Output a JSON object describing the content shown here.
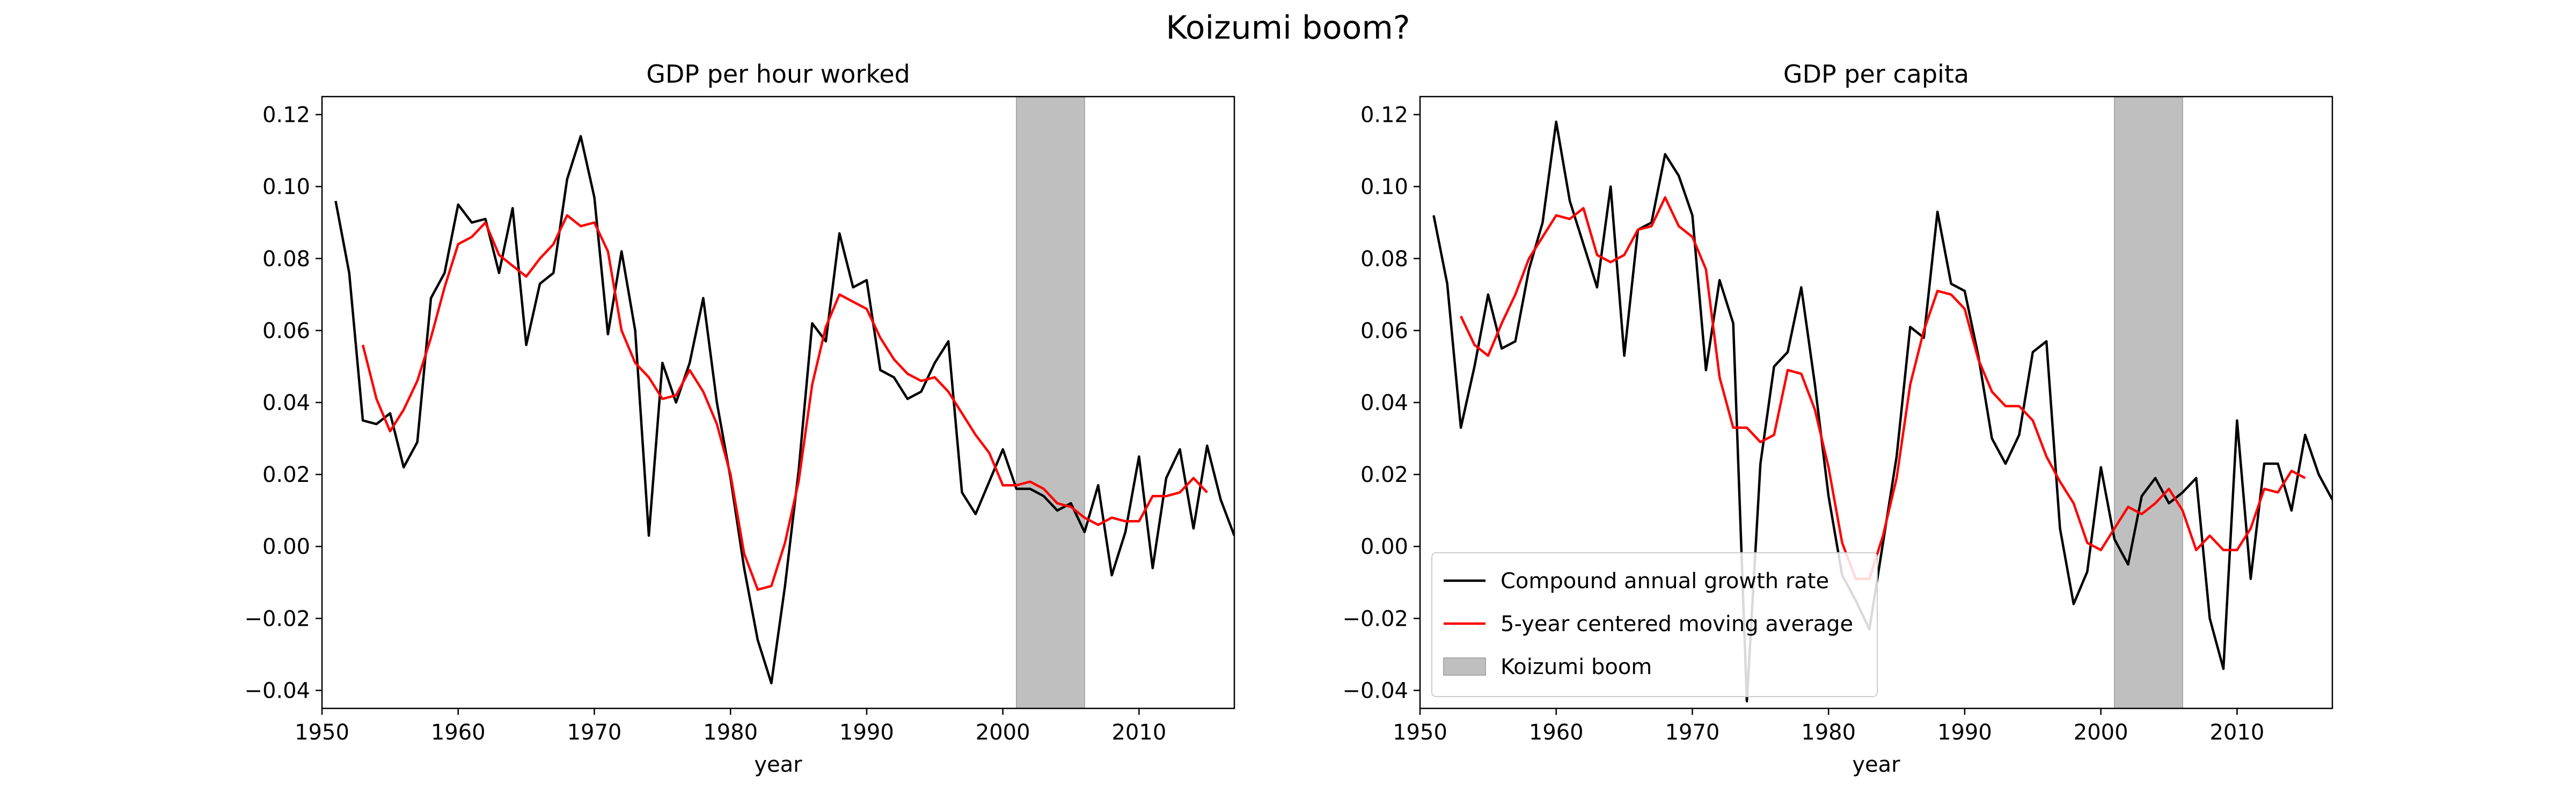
{
  "figure_title": "Koizumi boom?",
  "legend": {
    "placement": "lower left (right panel)",
    "items": [
      {
        "label": "Compound annual growth rate",
        "kind": "line",
        "color": "#000000"
      },
      {
        "label": "5-year centered moving average",
        "kind": "line",
        "color": "#ff0000"
      },
      {
        "label": "Koizumi boom",
        "kind": "patch",
        "color": "#bfbfbf"
      }
    ]
  },
  "chart_data": [
    {
      "type": "line",
      "title": "GDP per hour worked",
      "xlabel": "year",
      "ylabel": "",
      "xlim": [
        1950,
        2017
      ],
      "ylim": [
        -0.045,
        0.125
      ],
      "xticks": [
        1950,
        1960,
        1970,
        1980,
        1990,
        2000,
        2010
      ],
      "yticks": [
        -0.04,
        -0.02,
        0.0,
        0.02,
        0.04,
        0.06,
        0.08,
        0.1,
        0.12
      ],
      "ytick_labels": [
        "−0.04",
        "−0.02",
        "0.00",
        "0.02",
        "0.04",
        "0.06",
        "0.08",
        "0.10",
        "0.12"
      ],
      "grid": false,
      "shaded_span": {
        "label": "Koizumi boom",
        "x_start": 2001,
        "x_end": 2006,
        "color": "#bfbfbf"
      },
      "series": [
        {
          "name": "Compound annual growth rate",
          "color": "#000000",
          "x": [
            1951,
            1952,
            1953,
            1954,
            1955,
            1956,
            1957,
            1958,
            1959,
            1960,
            1961,
            1962,
            1963,
            1964,
            1965,
            1966,
            1967,
            1968,
            1969,
            1970,
            1971,
            1972,
            1973,
            1974,
            1975,
            1976,
            1977,
            1978,
            1979,
            1980,
            1981,
            1982,
            1983,
            1984,
            1985,
            1986,
            1987,
            1988,
            1989,
            1990,
            1991,
            1992,
            1993,
            1994,
            1995,
            1996,
            1997,
            1998,
            1999,
            2000,
            2001,
            2002,
            2003,
            2004,
            2005,
            2006,
            2007,
            2008,
            2009,
            2010,
            2011,
            2012,
            2013,
            2014,
            2015,
            2016,
            2017
          ],
          "y": [
            0.096,
            0.076,
            0.035,
            0.034,
            0.037,
            0.022,
            0.029,
            0.069,
            0.076,
            0.095,
            0.09,
            0.091,
            0.076,
            0.094,
            0.056,
            0.073,
            0.076,
            0.102,
            0.114,
            0.097,
            0.059,
            0.082,
            0.06,
            0.003,
            0.051,
            0.04,
            0.051,
            0.069,
            0.04,
            0.019,
            -0.006,
            -0.026,
            -0.038,
            -0.011,
            0.021,
            0.062,
            0.057,
            0.087,
            0.072,
            0.074,
            0.049,
            0.047,
            0.041,
            0.043,
            0.051,
            0.057,
            0.015,
            0.009,
            0.018,
            0.027,
            0.016,
            0.016,
            0.014,
            0.01,
            0.012,
            0.004,
            0.017,
            -0.008,
            0.004,
            0.025,
            -0.006,
            0.019,
            0.027,
            0.005,
            0.028,
            0.013,
            0.003
          ]
        },
        {
          "name": "5-year centered moving average",
          "color": "#ff0000",
          "x": [
            1953,
            1954,
            1955,
            1956,
            1957,
            1958,
            1959,
            1960,
            1961,
            1962,
            1963,
            1964,
            1965,
            1966,
            1967,
            1968,
            1969,
            1970,
            1971,
            1972,
            1973,
            1974,
            1975,
            1976,
            1977,
            1978,
            1979,
            1980,
            1981,
            1982,
            1983,
            1984,
            1985,
            1986,
            1987,
            1988,
            1989,
            1990,
            1991,
            1992,
            1993,
            1994,
            1995,
            1996,
            1997,
            1998,
            1999,
            2000,
            2001,
            2002,
            2003,
            2004,
            2005,
            2006,
            2007,
            2008,
            2009,
            2010,
            2011,
            2012,
            2013,
            2014,
            2015
          ],
          "y": [
            0.056,
            0.041,
            0.032,
            0.038,
            0.046,
            0.058,
            0.072,
            0.084,
            0.086,
            0.09,
            0.081,
            0.078,
            0.075,
            0.08,
            0.084,
            0.092,
            0.089,
            0.09,
            0.082,
            0.06,
            0.051,
            0.047,
            0.041,
            0.042,
            0.049,
            0.043,
            0.034,
            0.02,
            -0.002,
            -0.012,
            -0.011,
            0.001,
            0.018,
            0.045,
            0.061,
            0.07,
            0.068,
            0.066,
            0.058,
            0.052,
            0.048,
            0.046,
            0.047,
            0.043,
            0.037,
            0.031,
            0.026,
            0.017,
            0.017,
            0.018,
            0.016,
            0.012,
            0.011,
            0.008,
            0.006,
            0.008,
            0.007,
            0.007,
            0.014,
            0.014,
            0.015,
            0.019,
            0.015
          ]
        }
      ]
    },
    {
      "type": "line",
      "title": "GDP per capita",
      "xlabel": "year",
      "ylabel": "",
      "xlim": [
        1950,
        2017
      ],
      "ylim": [
        -0.045,
        0.125
      ],
      "xticks": [
        1950,
        1960,
        1970,
        1980,
        1990,
        2000,
        2010
      ],
      "yticks": [
        -0.04,
        -0.02,
        0.0,
        0.02,
        0.04,
        0.06,
        0.08,
        0.1,
        0.12
      ],
      "ytick_labels": [
        "−0.04",
        "−0.02",
        "0.00",
        "0.02",
        "0.04",
        "0.06",
        "0.08",
        "0.10",
        "0.12"
      ],
      "grid": false,
      "shaded_span": {
        "label": "Koizumi boom",
        "x_start": 2001,
        "x_end": 2006,
        "color": "#bfbfbf"
      },
      "series": [
        {
          "name": "Compound annual growth rate",
          "color": "#000000",
          "x": [
            1951,
            1952,
            1953,
            1954,
            1955,
            1956,
            1957,
            1958,
            1959,
            1960,
            1961,
            1962,
            1963,
            1964,
            1965,
            1966,
            1967,
            1968,
            1969,
            1970,
            1971,
            1972,
            1973,
            1974,
            1975,
            1976,
            1977,
            1978,
            1979,
            1980,
            1981,
            1982,
            1983,
            1984,
            1985,
            1986,
            1987,
            1988,
            1989,
            1990,
            1991,
            1992,
            1993,
            1994,
            1995,
            1996,
            1997,
            1998,
            1999,
            2000,
            2001,
            2002,
            2003,
            2004,
            2005,
            2006,
            2007,
            2008,
            2009,
            2010,
            2011,
            2012,
            2013,
            2014,
            2015,
            2016,
            2017
          ],
          "y": [
            0.092,
            0.073,
            0.033,
            0.05,
            0.07,
            0.055,
            0.057,
            0.077,
            0.09,
            0.118,
            0.096,
            0.084,
            0.072,
            0.1,
            0.053,
            0.088,
            0.09,
            0.109,
            0.103,
            0.092,
            0.049,
            0.074,
            0.062,
            -0.043,
            0.023,
            0.05,
            0.054,
            0.072,
            0.045,
            0.014,
            -0.008,
            -0.015,
            -0.023,
            0.001,
            0.025,
            0.061,
            0.058,
            0.093,
            0.073,
            0.071,
            0.053,
            0.03,
            0.023,
            0.031,
            0.054,
            0.057,
            0.005,
            -0.016,
            -0.007,
            0.022,
            0.002,
            -0.005,
            0.014,
            0.019,
            0.012,
            0.015,
            0.019,
            -0.02,
            -0.034,
            0.035,
            -0.009,
            0.023,
            0.023,
            0.01,
            0.031,
            0.02,
            0.013
          ]
        },
        {
          "name": "5-year centered moving average",
          "color": "#ff0000",
          "x": [
            1953,
            1954,
            1955,
            1956,
            1957,
            1958,
            1959,
            1960,
            1961,
            1962,
            1963,
            1964,
            1965,
            1966,
            1967,
            1968,
            1969,
            1970,
            1971,
            1972,
            1973,
            1974,
            1975,
            1976,
            1977,
            1978,
            1979,
            1980,
            1981,
            1982,
            1983,
            1984,
            1985,
            1986,
            1987,
            1988,
            1989,
            1990,
            1991,
            1992,
            1993,
            1994,
            1995,
            1996,
            1997,
            1998,
            1999,
            2000,
            2001,
            2002,
            2003,
            2004,
            2005,
            2006,
            2007,
            2008,
            2009,
            2010,
            2011,
            2012,
            2013,
            2014,
            2015
          ],
          "y": [
            0.064,
            0.056,
            0.053,
            0.062,
            0.07,
            0.08,
            0.086,
            0.092,
            0.091,
            0.094,
            0.081,
            0.079,
            0.081,
            0.088,
            0.089,
            0.097,
            0.089,
            0.086,
            0.077,
            0.047,
            0.033,
            0.033,
            0.029,
            0.031,
            0.049,
            0.048,
            0.038,
            0.022,
            0.001,
            -0.009,
            -0.009,
            0.003,
            0.019,
            0.045,
            0.06,
            0.071,
            0.07,
            0.066,
            0.052,
            0.043,
            0.039,
            0.039,
            0.035,
            0.025,
            0.018,
            0.012,
            0.001,
            -0.001,
            0.005,
            0.011,
            0.009,
            0.012,
            0.016,
            0.01,
            -0.001,
            0.003,
            -0.001,
            -0.001,
            0.005,
            0.016,
            0.015,
            0.021,
            0.019
          ]
        }
      ]
    }
  ]
}
